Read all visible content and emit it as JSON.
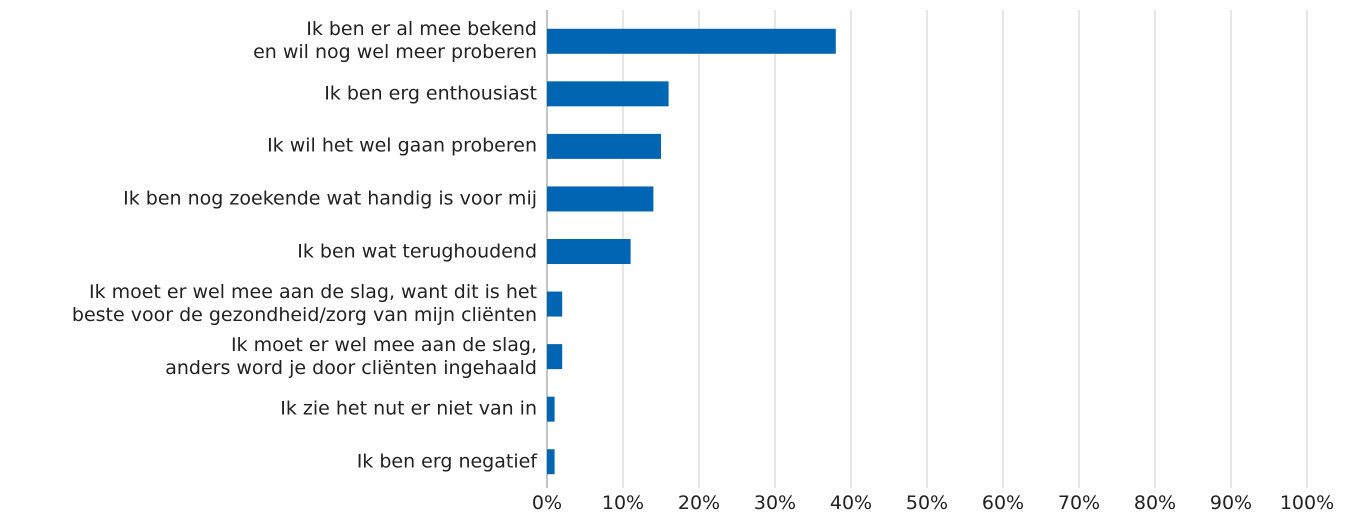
{
  "chart_data": {
    "type": "hbar",
    "categories": [
      "Ik ben er al mee bekend\nen wil nog wel meer proberen",
      "Ik ben erg enthousiast",
      "Ik wil het wel gaan proberen",
      "Ik ben nog zoekende wat handig is voor mij",
      "Ik ben wat terughoudend",
      "Ik moet er wel mee aan de slag, want dit is het\nbeste voor de gezondheid/zorg van mijn cliënten",
      "Ik moet er wel mee aan de slag,\nanders word je door cliënten ingehaald",
      "Ik zie het nut er niet van in",
      "Ik ben erg negatief"
    ],
    "values": [
      38,
      16,
      15,
      14,
      11,
      2,
      2,
      1,
      1
    ],
    "color": "#0066b3",
    "xlim": [
      0,
      100
    ],
    "xticks": [
      {
        "value": 0,
        "label": "0%"
      },
      {
        "value": 10,
        "label": "10%"
      },
      {
        "value": 20,
        "label": "20%"
      },
      {
        "value": 30,
        "label": "30%"
      },
      {
        "value": 40,
        "label": "40%"
      },
      {
        "value": 50,
        "label": "50%"
      },
      {
        "value": 60,
        "label": "60%"
      },
      {
        "value": 70,
        "label": "70%"
      },
      {
        "value": 80,
        "label": "80%"
      },
      {
        "value": 90,
        "label": "90%"
      },
      {
        "value": 100,
        "label": "100%"
      }
    ],
    "grid": true
  }
}
